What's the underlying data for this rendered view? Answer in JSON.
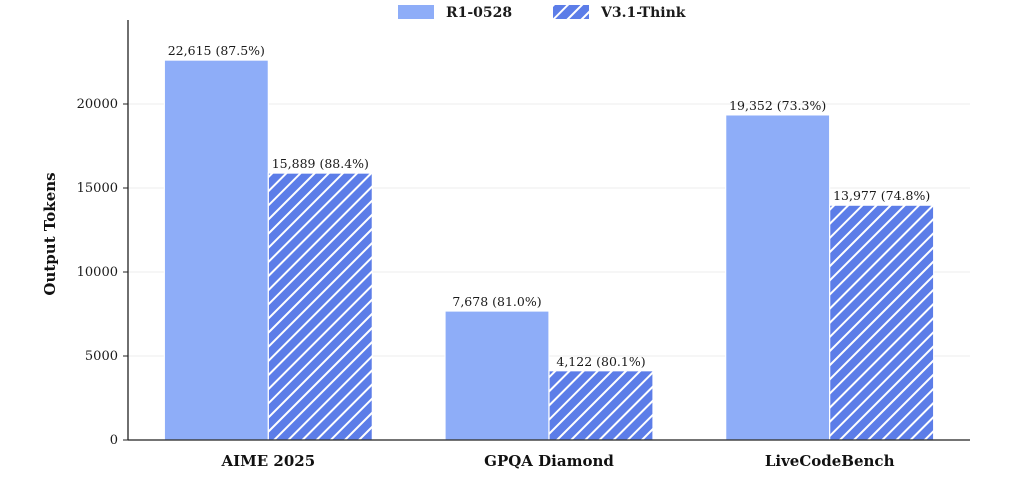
{
  "chart_data": {
    "type": "bar",
    "title": "",
    "xlabel": "",
    "ylabel": "Output Tokens",
    "ylim": [
      0,
      25000
    ],
    "yticks": [
      0,
      5000,
      10000,
      15000,
      20000
    ],
    "grid": true,
    "legend_position": "top-center",
    "categories": [
      "AIME 2025",
      "GPQA Diamond",
      "LiveCodeBench"
    ],
    "series": [
      {
        "name": "R1-0528",
        "style": "solid",
        "color": "#8eadf8",
        "values": [
          22615,
          7678,
          19352
        ],
        "labels": [
          "22,615 (87.5%)",
          "7,678 (81.0%)",
          "19,352 (73.3%)"
        ]
      },
      {
        "name": "V3.1-Think",
        "style": "hatched",
        "color": "#5c7de8",
        "values": [
          15889,
          4122,
          13977
        ],
        "labels": [
          "15,889 (88.4%)",
          "4,122 (80.1%)",
          "13,977 (74.8%)"
        ]
      }
    ]
  }
}
